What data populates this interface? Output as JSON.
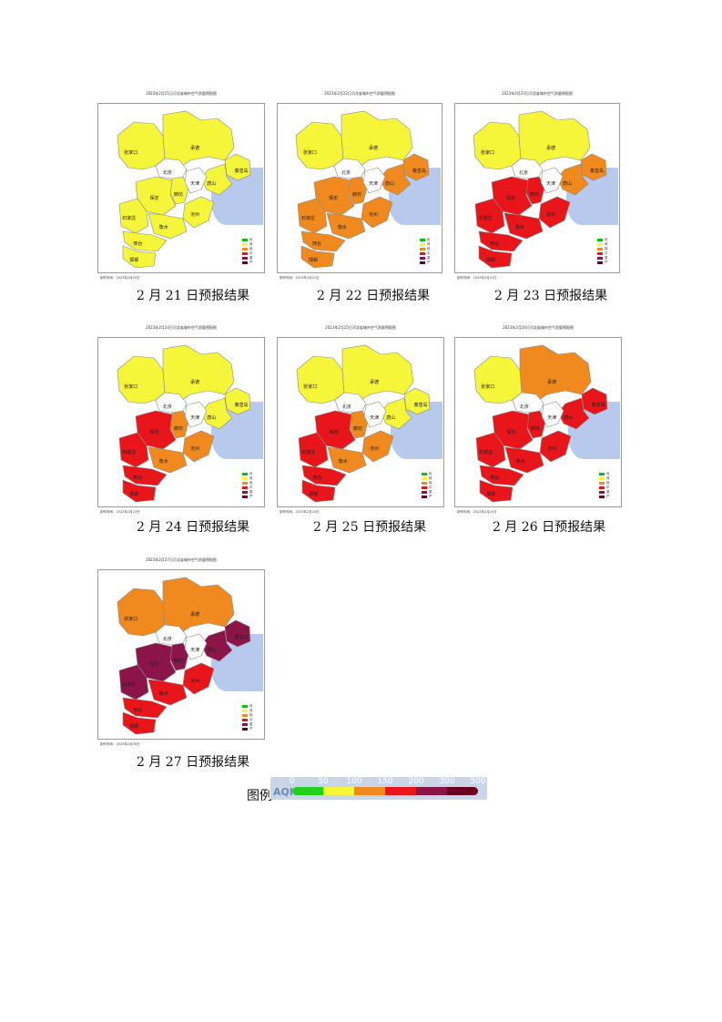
{
  "panels": [
    {
      "caption": "2 月 21 日预报结果",
      "title": "2023年2月21日河北省城市空气质量预报图",
      "footer": "制作时间：2023年2月20日",
      "colors": {
        "zjk": "#f5f53a",
        "cd": "#f5f53a",
        "bj": "#ffffff",
        "tj": "#ffffff",
        "ts": "#f5f53a",
        "qhd": "#f5f53a",
        "lf": "#f5f53a",
        "bd": "#f5f53a",
        "cz": "#f5f53a",
        "sjz": "#f5f53a",
        "hs": "#f5f53a",
        "xt": "#f5f53a",
        "hd": "#f5f53a"
      }
    },
    {
      "caption": "2 月 22 日预报结果",
      "title": "2023年2月22日河北省城市空气质量预报图",
      "footer": "制作时间：2023年2月21日",
      "colors": {
        "zjk": "#f5f53a",
        "cd": "#f5f53a",
        "bj": "#ffffff",
        "tj": "#ffffff",
        "ts": "#f08a1f",
        "qhd": "#f08a1f",
        "lf": "#f08a1f",
        "bd": "#f08a1f",
        "cz": "#f08a1f",
        "sjz": "#f08a1f",
        "hs": "#f08a1f",
        "xt": "#f08a1f",
        "hd": "#f08a1f"
      }
    },
    {
      "caption": "2 月 23 日预报结果",
      "title": "2023年2月23日河北省城市空气质量预报图",
      "footer": "制作时间：2023年2月22日",
      "colors": {
        "zjk": "#f5f53a",
        "cd": "#f5f53a",
        "bj": "#ffffff",
        "tj": "#ffffff",
        "ts": "#f08a1f",
        "qhd": "#f08a1f",
        "lf": "#e8161b",
        "bd": "#e8161b",
        "cz": "#e8161b",
        "sjz": "#e8161b",
        "hs": "#e8161b",
        "xt": "#e8161b",
        "hd": "#e8161b"
      }
    },
    {
      "caption": "2 月 24 日预报结果",
      "title": "2023年2月24日河北省城市空气质量预报图",
      "footer": "制作时间：2023年2月23日",
      "colors": {
        "zjk": "#f5f53a",
        "cd": "#f5f53a",
        "bj": "#ffffff",
        "tj": "#ffffff",
        "ts": "#f5f53a",
        "qhd": "#f5f53a",
        "lf": "#f08a1f",
        "bd": "#e8161b",
        "cz": "#f08a1f",
        "sjz": "#e8161b",
        "hs": "#f08a1f",
        "xt": "#e8161b",
        "hd": "#e8161b"
      }
    },
    {
      "caption": "2 月 25 日预报结果",
      "title": "2023年2月25日河北省城市空气质量预报图",
      "footer": "制作时间：2023年2月24日",
      "colors": {
        "zjk": "#f5f53a",
        "cd": "#f5f53a",
        "bj": "#ffffff",
        "tj": "#ffffff",
        "ts": "#f5f53a",
        "qhd": "#f5f53a",
        "lf": "#f08a1f",
        "bd": "#e8161b",
        "cz": "#f08a1f",
        "sjz": "#e8161b",
        "hs": "#f08a1f",
        "xt": "#e8161b",
        "hd": "#e8161b"
      }
    },
    {
      "caption": "2 月 26 日预报结果",
      "title": "2023年2月26日河北省城市空气质量预报图",
      "footer": "制作时间：2023年2月25日",
      "colors": {
        "zjk": "#f5f53a",
        "cd": "#f08a1f",
        "bj": "#ffffff",
        "tj": "#ffffff",
        "ts": "#e8161b",
        "qhd": "#e8161b",
        "lf": "#e8161b",
        "bd": "#e8161b",
        "cz": "#e8161b",
        "sjz": "#e8161b",
        "hs": "#e8161b",
        "xt": "#e8161b",
        "hd": "#e8161b"
      }
    },
    {
      "caption": "2 月 27 日预报结果",
      "title": "2023年2月27日河北省城市空气质量预报图",
      "footer": "制作时间：2023年2月26日",
      "colors": {
        "zjk": "#f08a1f",
        "cd": "#f08a1f",
        "bj": "#ffffff",
        "tj": "#ffffff",
        "ts": "#8b1448",
        "qhd": "#8b1448",
        "lf": "#8b1448",
        "bd": "#8b1448",
        "cz": "#e8161b",
        "sjz": "#8b1448",
        "hs": "#e8161b",
        "xt": "#e8161b",
        "hd": "#e8161b"
      }
    }
  ],
  "cities": {
    "zjk": "张家口",
    "cd": "承德",
    "bj": "北京",
    "tj": "天津",
    "ts": "唐山",
    "qhd": "秦皇岛",
    "lf": "廊坊",
    "bd": "保定",
    "cz": "沧州",
    "sjz": "石家庄",
    "hs": "衡水",
    "xt": "邢台",
    "hd": "邯郸"
  },
  "mini_legend": [
    {
      "label": "优",
      "color": "#00c800"
    },
    {
      "label": "良",
      "color": "#f5f53a"
    },
    {
      "label": "轻",
      "color": "#f08a1f"
    },
    {
      "label": "中",
      "color": "#e8161b"
    },
    {
      "label": "重",
      "color": "#8b1448"
    },
    {
      "label": "严",
      "color": "#6a0020"
    }
  ],
  "legend": {
    "label": "图例",
    "aqi_text": "AQI",
    "breaks": [
      "0",
      "50",
      "100",
      "150",
      "200",
      "300",
      "500"
    ],
    "colors": [
      "#22d11b",
      "#f5f53a",
      "#f08a1f",
      "#e8161b",
      "#8b1448",
      "#6a0020"
    ]
  }
}
